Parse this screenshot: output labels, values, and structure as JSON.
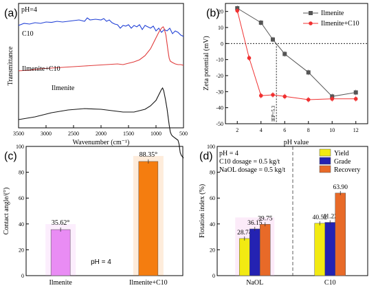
{
  "chart_data": [
    {
      "panel": "(a)",
      "type": "line",
      "annotation": "pH=4",
      "xlabel": "Wavenumber (cm⁻¹)",
      "ylabel": "Transmittance",
      "xlim": [
        3500,
        500
      ],
      "x_ticks": [
        3500,
        3000,
        2500,
        2000,
        1500,
        1000,
        500
      ],
      "curve_labels": [
        "C10",
        "Ilmenite+C10",
        "Ilmenite"
      ],
      "series": [
        {
          "name": "C10",
          "color": "#1f3fd6",
          "offset": 7.3,
          "points": [
            [
              3500,
              -0.1
            ],
            [
              3400,
              0.05
            ],
            [
              3300,
              0.0
            ],
            [
              3200,
              0.1
            ],
            [
              3100,
              0.05
            ],
            [
              3000,
              0.15
            ],
            [
              2900,
              0.12
            ],
            [
              2800,
              0.2
            ],
            [
              2700,
              0.15
            ],
            [
              2600,
              0.2
            ],
            [
              2500,
              0.25
            ],
            [
              2400,
              0.3
            ],
            [
              2300,
              0.2
            ],
            [
              2250,
              0.45
            ],
            [
              2200,
              0.3
            ],
            [
              2100,
              0.35
            ],
            [
              2000,
              0.3
            ],
            [
              1950,
              0.4
            ],
            [
              1900,
              0.2
            ],
            [
              1850,
              0.3
            ],
            [
              1800,
              0.1
            ],
            [
              1750,
              0.0
            ],
            [
              1700,
              -0.05
            ],
            [
              1650,
              -0.3
            ],
            [
              1600,
              -0.1
            ],
            [
              1550,
              -0.15
            ],
            [
              1500,
              -0.05
            ],
            [
              1450,
              -0.3
            ],
            [
              1400,
              -0.1
            ],
            [
              1350,
              -0.2
            ],
            [
              1300,
              -0.05
            ],
            [
              1250,
              -0.4
            ],
            [
              1200,
              -0.1
            ],
            [
              1150,
              -0.2
            ],
            [
              1100,
              -0.3
            ],
            [
              1050,
              -0.15
            ],
            [
              1000,
              -0.5
            ],
            [
              950,
              -0.3
            ],
            [
              900,
              -0.6
            ],
            [
              850,
              -0.4
            ],
            [
              800,
              -0.5
            ],
            [
              750,
              -0.3
            ],
            [
              700,
              -0.7
            ],
            [
              650,
              -0.5
            ],
            [
              600,
              -0.6
            ],
            [
              550,
              -0.8
            ],
            [
              500,
              -0.9
            ]
          ]
        },
        {
          "name": "Ilmenite+C10",
          "color": "#e03a3a",
          "offset": 3.9,
          "points": [
            [
              3500,
              0.0
            ],
            [
              3300,
              0.05
            ],
            [
              3100,
              0.15
            ],
            [
              2900,
              0.2
            ],
            [
              2700,
              0.25
            ],
            [
              2500,
              0.3
            ],
            [
              2300,
              0.35
            ],
            [
              2100,
              0.4
            ],
            [
              1900,
              0.45
            ],
            [
              1700,
              0.5
            ],
            [
              1600,
              0.45
            ],
            [
              1500,
              0.55
            ],
            [
              1400,
              0.65
            ],
            [
              1300,
              0.8
            ],
            [
              1200,
              1.1
            ],
            [
              1100,
              1.6
            ],
            [
              1050,
              2.0
            ],
            [
              1000,
              2.4
            ],
            [
              950,
              2.8
            ],
            [
              900,
              3.1
            ],
            [
              870,
              3.2
            ],
            [
              850,
              3.05
            ],
            [
              820,
              2.6
            ],
            [
              800,
              2.0
            ],
            [
              780,
              1.4
            ],
            [
              760,
              0.9
            ],
            [
              740,
              0.7
            ],
            [
              700,
              0.6
            ],
            [
              650,
              0.5
            ],
            [
              600,
              0.45
            ],
            [
              550,
              0.45
            ],
            [
              500,
              0.4
            ]
          ]
        },
        {
          "name": "Ilmenite",
          "color": "#111111",
          "offset": 0.35,
          "points": [
            [
              3500,
              0.0
            ],
            [
              3200,
              0.2
            ],
            [
              2900,
              0.5
            ],
            [
              2600,
              0.7
            ],
            [
              2300,
              0.8
            ],
            [
              2000,
              0.75
            ],
            [
              1800,
              0.65
            ],
            [
              1600,
              0.55
            ],
            [
              1400,
              0.55
            ],
            [
              1200,
              0.75
            ],
            [
              1100,
              1.0
            ],
            [
              1000,
              1.4
            ],
            [
              950,
              1.8
            ],
            [
              900,
              2.2
            ],
            [
              880,
              2.3
            ],
            [
              860,
              2.1
            ],
            [
              830,
              1.5
            ],
            [
              800,
              0.8
            ],
            [
              780,
              0.2
            ],
            [
              760,
              -0.4
            ],
            [
              740,
              -0.9
            ],
            [
              720,
              -1.1
            ],
            [
              700,
              -1.2
            ],
            [
              650,
              -1.35
            ],
            [
              600,
              -1.5
            ],
            [
              580,
              -1.8
            ],
            [
              560,
              -2.4
            ],
            [
              540,
              -2.6
            ],
            [
              520,
              -2.7
            ],
            [
              500,
              -2.8
            ]
          ]
        }
      ]
    },
    {
      "panel": "(b)",
      "type": "line",
      "xlabel": "pH value",
      "ylabel": "Zeta potential (mV)",
      "xlim": [
        1,
        13
      ],
      "ylim": [
        -50,
        25
      ],
      "x_ticks": [
        2,
        4,
        6,
        8,
        10,
        12
      ],
      "y_ticks": [
        20,
        10,
        0,
        -10,
        -20,
        -30,
        -40,
        -50
      ],
      "legend_position": "top-right",
      "iep_label": "IEP=5.3",
      "iep_value": 5.3,
      "series": [
        {
          "name": "Ilmenite",
          "color": "#555555",
          "marker": "square",
          "x": [
            2,
            4,
            5,
            6,
            8,
            10,
            12
          ],
          "y": [
            22,
            13,
            2.5,
            -6.5,
            -18,
            -33,
            -30.5
          ]
        },
        {
          "name": "Ilmenite+C10",
          "color": "#f03030",
          "marker": "circle",
          "x": [
            2,
            3,
            4,
            5,
            6,
            8,
            10,
            12
          ],
          "y": [
            20.5,
            -9,
            -32.5,
            -32,
            -33,
            -35,
            -34.5,
            -34.5
          ]
        }
      ]
    },
    {
      "panel": "(c)",
      "type": "bar",
      "ylabel": "Contact angle/(°)",
      "ylim": [
        0,
        100
      ],
      "y_ticks": [
        0,
        20,
        40,
        60,
        80,
        100
      ],
      "categories": [
        "Ilmenite",
        "Ilmenite+C10"
      ],
      "values": [
        35.62,
        88.35
      ],
      "value_labels": [
        "35.62°",
        "88.35°"
      ],
      "colors": [
        "#e98cf4",
        "#f57d0f"
      ],
      "annotation": "pH = 4"
    },
    {
      "panel": "(d)",
      "type": "bar",
      "ylabel": "Flotation index (%)",
      "ylim": [
        0,
        100
      ],
      "y_ticks": [
        0,
        20,
        40,
        60,
        80,
        100
      ],
      "categories": [
        "NaOL",
        "C10"
      ],
      "legend_position": "top-right",
      "annotations": [
        "pH = 4",
        "C10 dosage = 0.5 kg/t",
        "NaOL dosage = 0.5 kg/t"
      ],
      "series": [
        {
          "name": "Yield",
          "color": "#f2ea12",
          "values": [
            28.74,
            40.52
          ],
          "labels": [
            "28.74",
            "40.52"
          ]
        },
        {
          "name": "Grade",
          "color": "#2422b2",
          "values": [
            36.15,
            41.22
          ],
          "labels": [
            "36.15",
            "41.22"
          ]
        },
        {
          "name": "Recovery",
          "color": "#e86a28",
          "values": [
            39.75,
            63.9
          ],
          "labels": [
            "39.75",
            "63.90"
          ]
        }
      ]
    }
  ]
}
